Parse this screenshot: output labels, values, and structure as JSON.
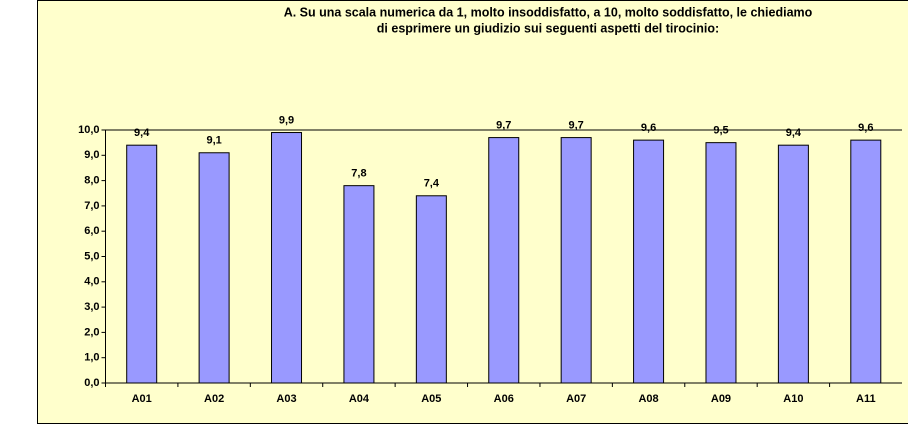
{
  "chart_data": {
    "type": "bar",
    "title_lines": [
      "A. Su una scala numerica da 1, molto insoddisfatto, a 10, molto soddisfatto, le chiediamo",
      "di esprimere un giudizio sui seguenti aspetti del tirocinio:"
    ],
    "categories": [
      "A01",
      "A02",
      "A03",
      "A04",
      "A05",
      "A06",
      "A07",
      "A08",
      "A09",
      "A10",
      "A11"
    ],
    "values": [
      9.4,
      9.1,
      9.9,
      7.8,
      7.4,
      9.7,
      9.7,
      9.6,
      9.5,
      9.4,
      9.6
    ],
    "value_labels": [
      "9,4",
      "9,1",
      "9,9",
      "7,8",
      "7,4",
      "9,7",
      "9,7",
      "9,6",
      "9,5",
      "9,4",
      "9,6"
    ],
    "color": "#9999ff",
    "ylim": [
      0,
      10
    ],
    "yticks": [
      {
        "value": 0,
        "label": "0,0"
      },
      {
        "value": 1,
        "label": "1,0"
      },
      {
        "value": 2,
        "label": "2,0"
      },
      {
        "value": 3,
        "label": "3,0"
      },
      {
        "value": 4,
        "label": "4,0"
      },
      {
        "value": 5,
        "label": "5,0"
      },
      {
        "value": 6,
        "label": "6,0"
      },
      {
        "value": 7,
        "label": "7,0"
      },
      {
        "value": 8,
        "label": "8,0"
      },
      {
        "value": 9,
        "label": "9,0"
      },
      {
        "value": 10,
        "label": "10,0"
      }
    ],
    "grid": false
  }
}
